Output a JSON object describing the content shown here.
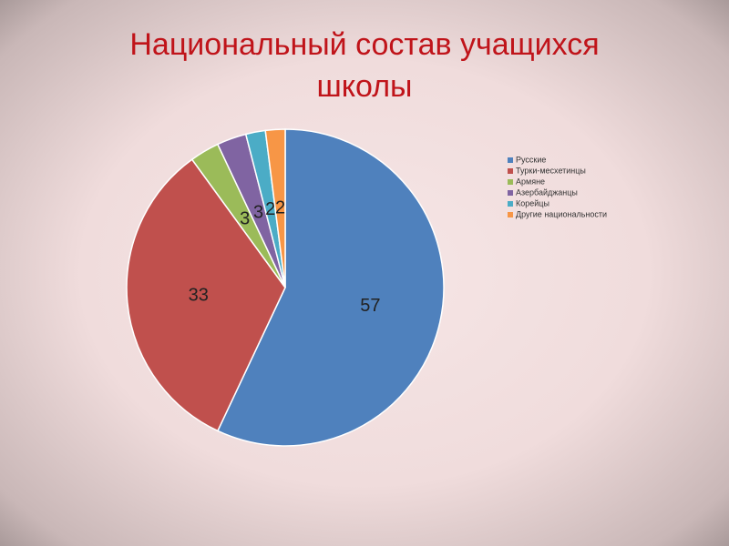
{
  "chart_data": {
    "type": "pie",
    "title": "Национальный состав учащихся школы",
    "categories": [
      "Русские",
      "Турки-месхетинцы",
      "Армяне",
      "Азербайджанцы",
      "Корейцы",
      "Другие национальности"
    ],
    "values": [
      57,
      33,
      3,
      3,
      2,
      2
    ],
    "colors": [
      "#4f81bd",
      "#c0504d",
      "#9bbb59",
      "#8064a2",
      "#4bacc6",
      "#f79646"
    ],
    "legend": "right"
  }
}
